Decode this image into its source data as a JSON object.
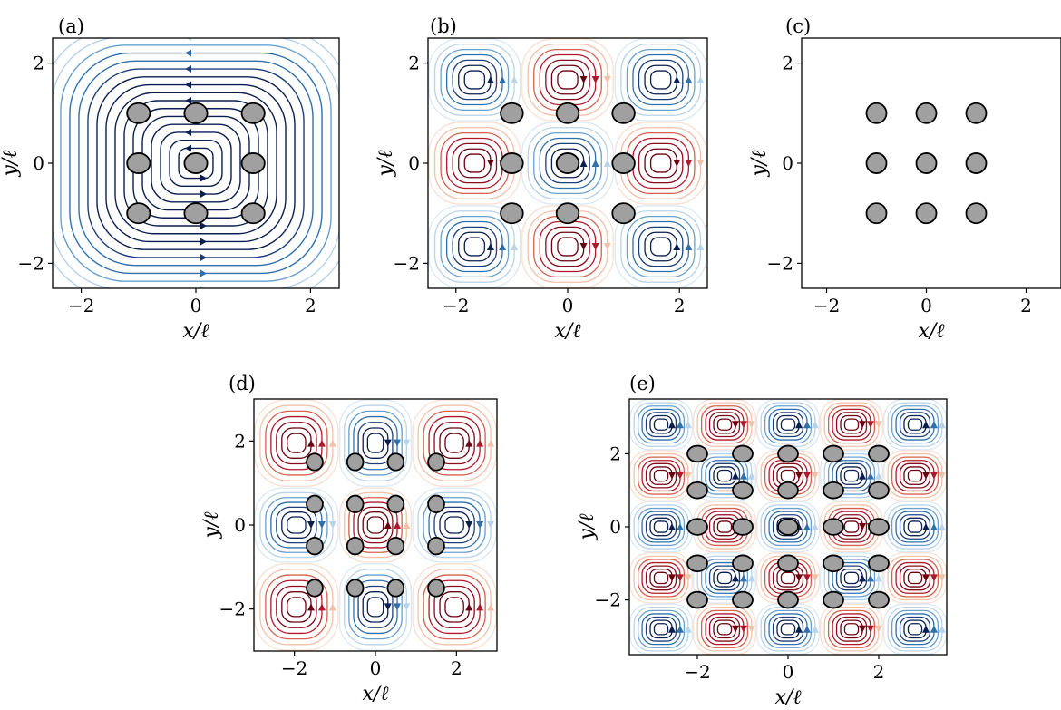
{
  "figure": {
    "panels": [
      "a",
      "b",
      "c",
      "d",
      "e"
    ]
  },
  "colors": {
    "cylinder_fill": "#a0a0a0",
    "cylinder_stroke": "#000000",
    "blue_dark": "#0b1f4f",
    "blue_mid": "#2f6fae",
    "blue_light": "#b9d3ea",
    "red_dark": "#6b0010",
    "red_mid": "#b2182b",
    "red_light": "#f3c1a8"
  },
  "chart_data": [
    {
      "panel": "(a)",
      "type": "scatter",
      "description_kind": "streamline plot with cylinder array",
      "xlabel": "x/ℓ",
      "ylabel": "y/ℓ",
      "xlim": [
        -2.5,
        2.5
      ],
      "ylim": [
        -2.5,
        2.5
      ],
      "xticks": [
        -2,
        0,
        2
      ],
      "yticks": [
        -2,
        0,
        2
      ],
      "xtick_labels": [
        "−2",
        "0",
        "2"
      ],
      "ytick_labels": [
        "−2",
        "0",
        "2"
      ],
      "cylinders": [
        [
          -1,
          1
        ],
        [
          0,
          1
        ],
        [
          1,
          1
        ],
        [
          -1,
          0
        ],
        [
          0,
          0
        ],
        [
          1,
          0
        ],
        [
          -1,
          -1
        ],
        [
          0,
          -1
        ],
        [
          1,
          -1
        ]
      ],
      "cylinder_radius": 0.2,
      "flow_pattern": "single large vortex, blue",
      "grid": false
    },
    {
      "panel": "(b)",
      "type": "scatter",
      "description_kind": "streamline plot with cylinder array",
      "xlabel": "x/ℓ",
      "ylabel": "y/ℓ",
      "xlim": [
        -2.5,
        2.5
      ],
      "ylim": [
        -2.5,
        2.5
      ],
      "xticks": [
        -2,
        0,
        2
      ],
      "yticks": [
        -2,
        0,
        2
      ],
      "xtick_labels": [
        "−2",
        "0",
        "2"
      ],
      "ytick_labels": [
        "−2",
        "0",
        "2"
      ],
      "cylinders": [
        [
          -1,
          1
        ],
        [
          0,
          1
        ],
        [
          1,
          1
        ],
        [
          -1,
          0
        ],
        [
          0,
          0
        ],
        [
          1,
          0
        ],
        [
          -1,
          -1
        ],
        [
          0,
          -1
        ],
        [
          1,
          -1
        ]
      ],
      "cylinder_radius": 0.2,
      "flow_pattern": "3x3 checkerboard vortices",
      "cell_colors": [
        [
          "blue",
          "red",
          "blue"
        ],
        [
          "red",
          "blue",
          "red"
        ],
        [
          "blue",
          "red",
          "blue"
        ]
      ],
      "grid": false
    },
    {
      "panel": "(c)",
      "type": "scatter",
      "description_kind": "cylinder array, no flow",
      "xlabel": "x/ℓ",
      "ylabel": "y/ℓ",
      "xlim": [
        -2.5,
        2.5
      ],
      "ylim": [
        -2.5,
        2.5
      ],
      "xticks": [
        -2,
        0,
        2
      ],
      "yticks": [
        -2,
        0,
        2
      ],
      "xtick_labels": [
        "−2",
        "0",
        "2"
      ],
      "ytick_labels": [
        "−2",
        "0",
        "2"
      ],
      "cylinders": [
        [
          -1,
          1
        ],
        [
          0,
          1
        ],
        [
          1,
          1
        ],
        [
          -1,
          0
        ],
        [
          0,
          0
        ],
        [
          1,
          0
        ],
        [
          -1,
          -1
        ],
        [
          0,
          -1
        ],
        [
          1,
          -1
        ]
      ],
      "cylinder_radius": 0.2,
      "grid": false
    },
    {
      "panel": "(d)",
      "type": "scatter",
      "description_kind": "streamline plot with cylinder array",
      "xlabel": "x/ℓ",
      "ylabel": "y/ℓ",
      "xlim": [
        -3,
        3
      ],
      "ylim": [
        -3,
        3
      ],
      "xticks": [
        -2,
        0,
        2
      ],
      "yticks": [
        -2,
        0,
        2
      ],
      "xtick_labels": [
        "−2",
        "0",
        "2"
      ],
      "ytick_labels": [
        "−2",
        "0",
        "2"
      ],
      "cylinders": [
        [
          -1.5,
          1.5
        ],
        [
          -0.5,
          1.5
        ],
        [
          0.5,
          1.5
        ],
        [
          1.5,
          1.5
        ],
        [
          -1.5,
          0.5
        ],
        [
          -0.5,
          0.5
        ],
        [
          0.5,
          0.5
        ],
        [
          1.5,
          0.5
        ],
        [
          -1.5,
          -0.5
        ],
        [
          -0.5,
          -0.5
        ],
        [
          0.5,
          -0.5
        ],
        [
          1.5,
          -0.5
        ],
        [
          -1.5,
          -1.5
        ],
        [
          -0.5,
          -1.5
        ],
        [
          0.5,
          -1.5
        ],
        [
          1.5,
          -1.5
        ]
      ],
      "cylinder_radius": 0.2,
      "flow_pattern": "3x3 block vortices",
      "cell_colors": [
        [
          "red",
          "blue",
          "red"
        ],
        [
          "blue",
          "red",
          "blue"
        ],
        [
          "red",
          "blue",
          "red"
        ]
      ],
      "cell_edges": [
        -2.2,
        -0.9,
        0.9,
        2.2
      ],
      "grid": false
    },
    {
      "panel": "(e)",
      "type": "scatter",
      "description_kind": "streamline plot with cylinder array",
      "xlabel": "x/ℓ",
      "ylabel": "y/ℓ",
      "xlim": [
        -3.5,
        3.5
      ],
      "ylim": [
        -3.5,
        3.5
      ],
      "xticks": [
        -2,
        0,
        2
      ],
      "yticks": [
        -2,
        0,
        2
      ],
      "xtick_labels": [
        "−2",
        "0",
        "2"
      ],
      "ytick_labels": [
        "−2",
        "0",
        "2"
      ],
      "cylinders": [
        [
          -2,
          2
        ],
        [
          -1,
          2
        ],
        [
          0,
          2
        ],
        [
          1,
          2
        ],
        [
          2,
          2
        ],
        [
          -2,
          1
        ],
        [
          -1,
          1
        ],
        [
          0,
          1
        ],
        [
          1,
          1
        ],
        [
          2,
          1
        ],
        [
          -2,
          0
        ],
        [
          -1,
          0
        ],
        [
          0,
          0
        ],
        [
          1,
          0
        ],
        [
          2,
          0
        ],
        [
          -2,
          -1
        ],
        [
          -1,
          -1
        ],
        [
          0,
          -1
        ],
        [
          1,
          -1
        ],
        [
          2,
          -1
        ],
        [
          -2,
          -2
        ],
        [
          -1,
          -2
        ],
        [
          0,
          -2
        ],
        [
          1,
          -2
        ],
        [
          2,
          -2
        ]
      ],
      "cylinder_radius": 0.22,
      "flow_pattern": "5x5 checkerboard vortices",
      "cell_colors": [
        [
          "blue",
          "red",
          "blue",
          "red",
          "blue"
        ],
        [
          "red",
          "blue",
          "red",
          "blue",
          "red"
        ],
        [
          "blue",
          "red",
          "blue",
          "red",
          "blue"
        ],
        [
          "red",
          "blue",
          "red",
          "blue",
          "red"
        ],
        [
          "blue",
          "red",
          "blue",
          "red",
          "blue"
        ]
      ],
      "grid": false
    }
  ]
}
